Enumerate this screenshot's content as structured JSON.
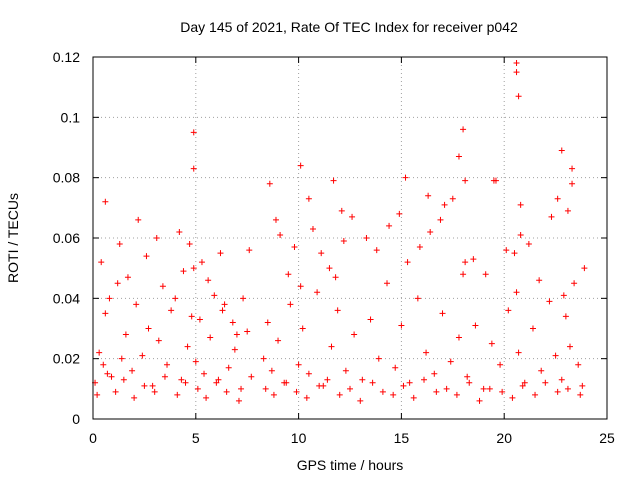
{
  "chart_data": {
    "type": "scatter",
    "title": "Day 145 of 2021, Rate Of TEC Index for receiver p042",
    "xlabel": "GPS time / hours",
    "ylabel": "ROTI / TECUs",
    "xlim": [
      0,
      25
    ],
    "ylim": [
      0,
      0.12
    ],
    "x_ticks": [
      "0",
      "5",
      "10",
      "15",
      "20",
      "25"
    ],
    "y_ticks": [
      "0",
      "0.02",
      "0.04",
      "0.06",
      "0.08",
      "0.1",
      "0.12"
    ],
    "x_tick_values": [
      0,
      5,
      10,
      15,
      20,
      25
    ],
    "y_tick_values": [
      0,
      0.02,
      0.04,
      0.06,
      0.08,
      0.1,
      0.12
    ],
    "grid": true,
    "marker": "+",
    "series": [
      {
        "name": "ROTI",
        "color": "#ff0000",
        "x": [
          0.1,
          0.3,
          0.5,
          0.6,
          0.9,
          1.2,
          1.4,
          1.6,
          1.9,
          2.1,
          2.4,
          2.7,
          2.9,
          3.2,
          3.6,
          4.0,
          4.3,
          4.6,
          4.8,
          4.9,
          5.0,
          5.2,
          5.4,
          5.7,
          6.0,
          6.3,
          6.6,
          6.9,
          7.2,
          7.5,
          7.7,
          8.3,
          8.5,
          8.7,
          9.0,
          9.3,
          9.6,
          10.0,
          10.2,
          10.5,
          10.9,
          11.2,
          11.6,
          11.9,
          12.3,
          12.7,
          13.1,
          13.5,
          13.9,
          14.3,
          14.7,
          15.0,
          15.4,
          15.8,
          16.2,
          16.6,
          17.0,
          17.4,
          17.8,
          18.0,
          18.2,
          18.6,
          19.0,
          19.4,
          19.8,
          20.2,
          20.5,
          20.6,
          20.7,
          21.0,
          21.4,
          21.8,
          22.2,
          22.5,
          22.8,
          23.0,
          23.2,
          23.4,
          23.6,
          23.8,
          0.2,
          0.7,
          1.1,
          1.5,
          2.0,
          2.5,
          3.0,
          3.5,
          4.1,
          4.5,
          5.1,
          5.5,
          6.1,
          6.5,
          7.1,
          8.4,
          8.8,
          9.4,
          9.9,
          10.4,
          11.0,
          11.4,
          12.0,
          12.5,
          13.0,
          13.6,
          14.1,
          14.6,
          15.1,
          15.6,
          16.1,
          16.7,
          17.2,
          17.7,
          18.3,
          18.8,
          19.3,
          19.9,
          20.4,
          20.9,
          21.5,
          22.0,
          22.6,
          23.1,
          23.7,
          0.4,
          0.8,
          1.3,
          1.7,
          2.2,
          2.6,
          3.1,
          3.4,
          3.8,
          4.2,
          4.4,
          4.7,
          5.3,
          5.6,
          5.9,
          6.2,
          6.4,
          6.8,
          7.0,
          7.3,
          7.6,
          8.6,
          8.9,
          9.1,
          9.5,
          9.8,
          10.1,
          10.7,
          11.1,
          11.5,
          11.8,
          12.2,
          12.6,
          13.3,
          13.8,
          14.4,
          14.9,
          15.3,
          15.9,
          16.4,
          16.9,
          17.5,
          18.1,
          18.5,
          19.1,
          19.6,
          20.1,
          20.8,
          21.2,
          21.7,
          22.3,
          22.9,
          23.3,
          23.9,
          0.6,
          4.9,
          4.9,
          10.1,
          10.5,
          11.7,
          12.1,
          15.2,
          16.3,
          17.1,
          17.8,
          18.0,
          18.1,
          19.5,
          20.6,
          20.6,
          20.7,
          20.8,
          22.6,
          22.8,
          23.1,
          23.3
        ],
        "y": [
          0.012,
          0.022,
          0.018,
          0.035,
          0.014,
          0.045,
          0.02,
          0.028,
          0.016,
          0.038,
          0.021,
          0.03,
          0.011,
          0.026,
          0.018,
          0.04,
          0.013,
          0.024,
          0.034,
          0.05,
          0.019,
          0.033,
          0.015,
          0.027,
          0.012,
          0.036,
          0.017,
          0.023,
          0.01,
          0.029,
          0.014,
          0.02,
          0.032,
          0.016,
          0.026,
          0.012,
          0.038,
          0.018,
          0.03,
          0.015,
          0.042,
          0.011,
          0.024,
          0.036,
          0.016,
          0.028,
          0.013,
          0.033,
          0.02,
          0.045,
          0.017,
          0.031,
          0.012,
          0.04,
          0.022,
          0.015,
          0.035,
          0.019,
          0.027,
          0.048,
          0.014,
          0.031,
          0.01,
          0.025,
          0.018,
          0.036,
          0.055,
          0.042,
          0.022,
          0.012,
          0.03,
          0.016,
          0.039,
          0.021,
          0.013,
          0.034,
          0.024,
          0.045,
          0.018,
          0.011,
          0.008,
          0.015,
          0.009,
          0.013,
          0.007,
          0.011,
          0.009,
          0.014,
          0.008,
          0.012,
          0.01,
          0.007,
          0.013,
          0.009,
          0.006,
          0.01,
          0.008,
          0.012,
          0.009,
          0.007,
          0.011,
          0.013,
          0.008,
          0.01,
          0.006,
          0.012,
          0.009,
          0.008,
          0.011,
          0.007,
          0.013,
          0.009,
          0.01,
          0.008,
          0.012,
          0.006,
          0.01,
          0.009,
          0.007,
          0.011,
          0.008,
          0.012,
          0.009,
          0.01,
          0.008,
          0.052,
          0.04,
          0.058,
          0.047,
          0.066,
          0.054,
          0.06,
          0.044,
          0.036,
          0.062,
          0.049,
          0.058,
          0.052,
          0.046,
          0.041,
          0.055,
          0.038,
          0.032,
          0.028,
          0.04,
          0.056,
          0.078,
          0.066,
          0.061,
          0.048,
          0.057,
          0.044,
          0.063,
          0.055,
          0.05,
          0.047,
          0.059,
          0.067,
          0.06,
          0.056,
          0.064,
          0.068,
          0.052,
          0.057,
          0.062,
          0.066,
          0.073,
          0.052,
          0.053,
          0.048,
          0.079,
          0.056,
          0.061,
          0.058,
          0.046,
          0.067,
          0.041,
          0.078,
          0.05,
          0.072,
          0.095,
          0.083,
          0.084,
          0.073,
          0.079,
          0.069,
          0.08,
          0.074,
          0.071,
          0.087,
          0.096,
          0.079,
          0.079,
          0.118,
          0.115,
          0.107,
          0.071,
          0.073,
          0.089,
          0.069,
          0.083
        ]
      }
    ]
  }
}
